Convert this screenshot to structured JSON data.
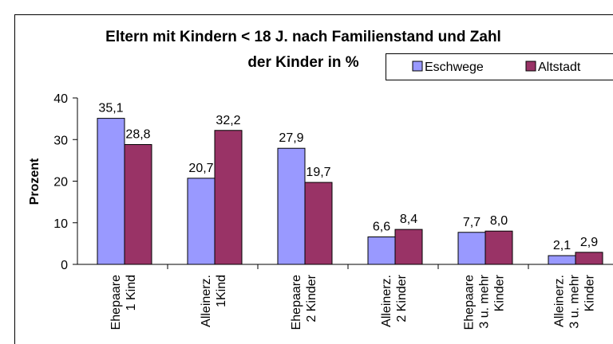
{
  "chart_data": {
    "type": "bar",
    "title": [
      "Eltern mit Kindern < 18 J. nach Familienstand und Zahl",
      "der Kinder in %"
    ],
    "ylabel": "Prozent",
    "categories": [
      [
        "Ehepaare",
        "1 Kind"
      ],
      [
        "Alleinerz.",
        "1Kind"
      ],
      [
        "Ehepaare",
        "2 Kinder"
      ],
      [
        "Alleinerz.",
        "2 Kinder"
      ],
      [
        "Ehepaare",
        "3 u. mehr",
        "Kinder"
      ],
      [
        "Alleinerz.",
        "3 u. mehr",
        "Kinder"
      ]
    ],
    "series": [
      {
        "name": "Eschwege",
        "color": "#9999ff",
        "values": [
          35.1,
          20.7,
          27.9,
          6.6,
          7.7,
          2.1
        ],
        "value_labels": [
          "35,1",
          "20,7",
          "27,9",
          "6,6",
          "7,7",
          "2,1"
        ]
      },
      {
        "name": "Altstadt",
        "color": "#993366",
        "values": [
          28.8,
          32.2,
          19.7,
          8.4,
          8.0,
          2.9
        ],
        "value_labels": [
          "28,8",
          "32,2",
          "19,7",
          "8,4",
          "8,0",
          "2,9"
        ]
      }
    ],
    "ylim": [
      0,
      40
    ],
    "yticks": [
      0,
      10,
      20,
      30,
      40
    ],
    "legend": "top-right"
  }
}
